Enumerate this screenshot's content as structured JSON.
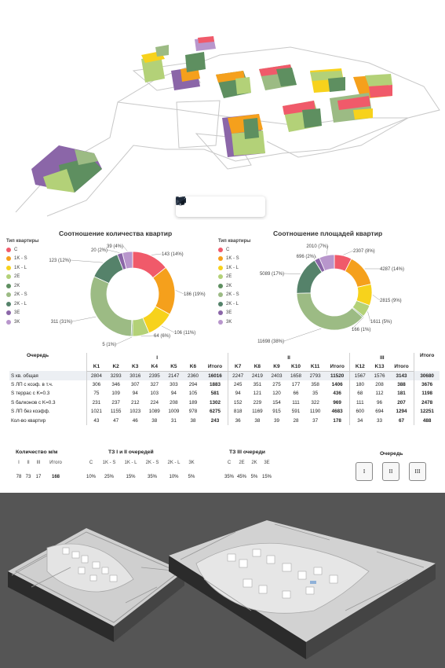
{
  "viewer": {
    "tools": [
      "expand-icon",
      "video-camera-icon",
      "cube-icon",
      "brush-icon"
    ]
  },
  "colors": {
    "C": "#f05a6a",
    "1K-S": "#f5a01c",
    "1K-L": "#f7d21c",
    "2E": "#b3d178",
    "2K": "#5e8f60",
    "2K-S": "#9cbb84",
    "2K-L": "#55826a",
    "3E": "#8b66a8",
    "3K": "#b896cc"
  },
  "legend": {
    "title": "Тип квартиры",
    "items": [
      "C",
      "1K - S",
      "1K - L",
      "2E",
      "2K",
      "2K - S",
      "2K - L",
      "3E",
      "3K"
    ]
  },
  "chart_data": [
    {
      "type": "pie",
      "title": "Соотношение количества квартир",
      "labels": [
        "C",
        "1K - S",
        "1K - L",
        "2E",
        "2K",
        "2K - S",
        "2K - L",
        "3E",
        "3K"
      ],
      "values": [
        143,
        186,
        106,
        64,
        5,
        311,
        123,
        20,
        39
      ],
      "data_labels": [
        "143 (14%)",
        "186 (19%)",
        "106 (11%)",
        "64 (6%)",
        "5 (1%)",
        "311 (31%)",
        "123 (12%)",
        "20 (2%)",
        "39 (4%)"
      ]
    },
    {
      "type": "pie",
      "title": "Соотношение площадей квартир",
      "labels": [
        "C",
        "1K - S",
        "1K - L",
        "2E",
        "2K",
        "2K - S",
        "2K - L",
        "3E",
        "3K"
      ],
      "values": [
        2307,
        4287,
        2815,
        1611,
        166,
        11698,
        5089,
        696,
        2010
      ],
      "data_labels": [
        "2307 (8%)",
        "4287 (14%)",
        "2815 (9%)",
        "1611 (5%)",
        "166 (1%)",
        "11698 (38%)",
        "5089 (17%)",
        "696 (2%)",
        "2010 (7%)"
      ]
    }
  ],
  "table": {
    "queue_header": "Очередь",
    "groups": [
      "I",
      "II",
      "III"
    ],
    "total_header": "Итого",
    "columns": [
      "K1",
      "K2",
      "K3",
      "K4",
      "K5",
      "K6",
      "Итого",
      "K7",
      "K8",
      "K9",
      "K10",
      "K11",
      "Итого",
      "K12",
      "K13",
      "Итого",
      ""
    ],
    "rows": [
      {
        "label": "S кв. общая",
        "values": [
          "2804",
          "3293",
          "3016",
          "2395",
          "2147",
          "2360",
          "16016",
          "2247",
          "2419",
          "2403",
          "1658",
          "2793",
          "11520",
          "1567",
          "1576",
          "3143",
          "30680"
        ]
      },
      {
        "label": "S ЛП с коэф. в т.ч.",
        "values": [
          "306",
          "346",
          "307",
          "327",
          "303",
          "294",
          "1883",
          "245",
          "351",
          "275",
          "177",
          "358",
          "1406",
          "180",
          "208",
          "388",
          "3676"
        ]
      },
      {
        "label": "S террас с K=0.3",
        "values": [
          "75",
          "109",
          "94",
          "103",
          "94",
          "105",
          "581",
          "94",
          "121",
          "120",
          "66",
          "35",
          "436",
          "68",
          "112",
          "181",
          "1198"
        ]
      },
      {
        "label": "S балконов с K=0.3",
        "values": [
          "231",
          "237",
          "212",
          "224",
          "208",
          "189",
          "1302",
          "152",
          "229",
          "154",
          "111",
          "322",
          "969",
          "111",
          "96",
          "207",
          "2478"
        ]
      },
      {
        "label": "S ЛП без коэфф.",
        "values": [
          "1021",
          "1155",
          "1023",
          "1089",
          "1009",
          "978",
          "6275",
          "818",
          "1169",
          "915",
          "591",
          "1190",
          "4683",
          "600",
          "694",
          "1294",
          "12251"
        ]
      },
      {
        "label": "Кол-во квартир",
        "values": [
          "43",
          "47",
          "46",
          "38",
          "31",
          "38",
          "243",
          "36",
          "38",
          "39",
          "28",
          "37",
          "178",
          "34",
          "33",
          "67",
          "488"
        ]
      }
    ]
  },
  "summary": {
    "count": {
      "title": "Количество м/м",
      "headers": [
        "I",
        "II",
        "III",
        "Итого"
      ],
      "values": [
        "78",
        "73",
        "17",
        "168"
      ]
    },
    "tz12": {
      "title": "ТЗ I и II очередей",
      "headers": [
        "C",
        "1K - S",
        "1K - L",
        "2K - S",
        "2K - L",
        "3K"
      ],
      "values": [
        "10%",
        "25%",
        "15%",
        "35%",
        "10%",
        "5%"
      ]
    },
    "tz3": {
      "title": "ТЗ III очереди",
      "headers": [
        "C",
        "2E",
        "2K",
        "3E"
      ],
      "values": [
        "35%",
        "45%",
        "5%",
        "15%"
      ]
    },
    "queue": {
      "title": "Очередь",
      "buttons": [
        "I",
        "II",
        "III"
      ]
    }
  }
}
